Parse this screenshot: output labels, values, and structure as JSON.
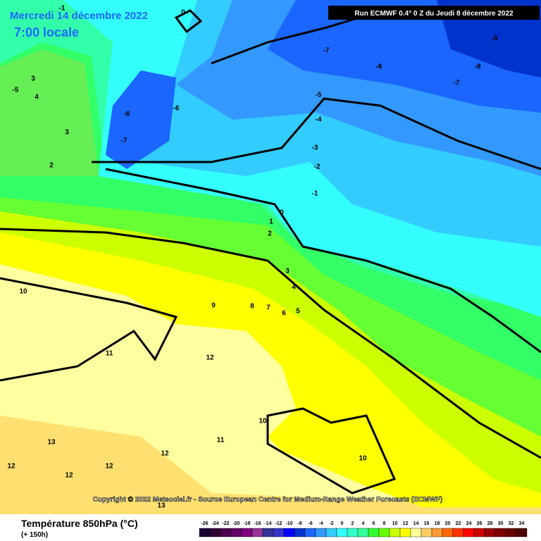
{
  "header": {
    "date": "Mercredi 14 décembre 2022",
    "time": "7:00 locale",
    "run": "Run ECMWF 0.4° 0 Z du Jeudi 8 décembre 2022"
  },
  "copyright": "Copyright © 2022 Meteociel.fr - Source European Centre for Medium-Range Weather Forecasts (ECMWF)",
  "footer": {
    "title": "Température 850hPa (°C)",
    "lead": "(+ 150h)"
  },
  "contour_labels": [
    0,
    -1,
    -7,
    -9,
    -8,
    -6,
    -7,
    -5,
    -4,
    -6,
    -6,
    -7,
    -3,
    -2,
    -1,
    0,
    1,
    2,
    3,
    4,
    5,
    6,
    7,
    8,
    9,
    10,
    11,
    12,
    10,
    11,
    10,
    13,
    12,
    12,
    12,
    12,
    13,
    3,
    -5,
    4,
    3,
    2
  ],
  "legend": {
    "ticks": [
      -26,
      -24,
      -22,
      -20,
      -18,
      -16,
      -14,
      -12,
      -10,
      -8,
      -6,
      -4,
      -2,
      0,
      2,
      4,
      6,
      8,
      10,
      12,
      14,
      16,
      18,
      20,
      22,
      24,
      26,
      28,
      30,
      32,
      34
    ],
    "colors": [
      "#1a0033",
      "#330033",
      "#4d004d",
      "#660066",
      "#800080",
      "#993399",
      "#333399",
      "#3333cc",
      "#0000ff",
      "#0033cc",
      "#1a66ff",
      "#3399ff",
      "#33ccff",
      "#33ffff",
      "#33ffcc",
      "#33ff99",
      "#33ff33",
      "#66ff00",
      "#ccff00",
      "#ffff00",
      "#ffff99",
      "#ffcc66",
      "#ff9933",
      "#ff6600",
      "#ff3300",
      "#ff0000",
      "#cc0000",
      "#990000",
      "#800000",
      "#660000",
      "#4d0000"
    ]
  }
}
